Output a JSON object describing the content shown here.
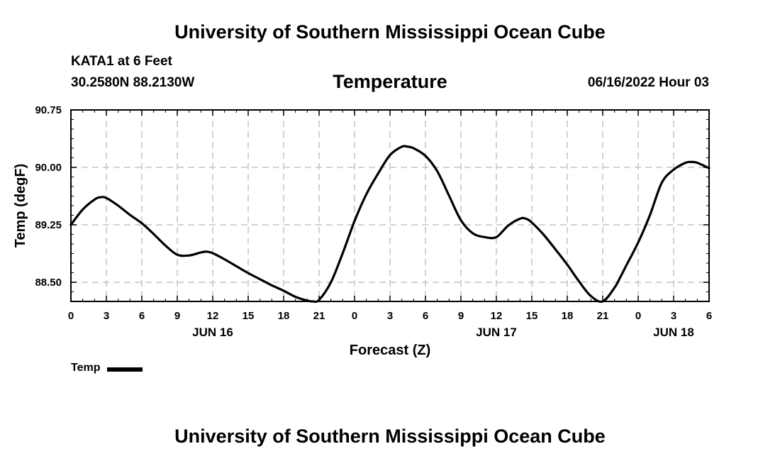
{
  "header": {
    "banner": "University of Southern Mississippi Ocean Cube",
    "station": "KATA1 at 6 Feet",
    "coords": "30.2580N  88.2130W",
    "title": "Temperature",
    "timestamp": "06/16/2022 Hour 03"
  },
  "footer": {
    "banner": "University of Southern Mississippi Ocean Cube"
  },
  "legend": {
    "label": "Temp",
    "color": "#000000"
  },
  "chart_data": {
    "type": "line",
    "title": "Temperature",
    "xlabel": "Forecast (Z)",
    "ylabel": "Temp (degF)",
    "x_unit": "hours since JUN 16 00Z",
    "xlim": [
      0,
      54
    ],
    "ylim": [
      88.25,
      90.75
    ],
    "y_grid_values": [
      88.5,
      89.25,
      90.0,
      90.75
    ],
    "y_tick_labels": [
      "88.50",
      "89.25",
      "90.00",
      "90.75"
    ],
    "x_ticks": [
      0,
      3,
      6,
      9,
      12,
      15,
      18,
      21,
      24,
      27,
      30,
      33,
      36,
      39,
      42,
      45,
      48,
      51,
      54
    ],
    "x_tick_labels": [
      "0",
      "3",
      "6",
      "9",
      "12",
      "15",
      "18",
      "21",
      "0",
      "3",
      "6",
      "9",
      "12",
      "15",
      "18",
      "21",
      "0",
      "3",
      "6"
    ],
    "x_grid_values": [
      3,
      6,
      9,
      12,
      15,
      18,
      21,
      24,
      27,
      30,
      33,
      36,
      39,
      42,
      45,
      48,
      51
    ],
    "day_labels": [
      {
        "x": 12,
        "label": "JUN 16"
      },
      {
        "x": 36,
        "label": "JUN 17"
      },
      {
        "x": 51,
        "label": "JUN 18"
      }
    ],
    "grid": true,
    "legend_position": "bottom-left",
    "series": [
      {
        "name": "Temp",
        "color": "#000000",
        "x": [
          0,
          1,
          2,
          2.5,
          3,
          4,
          5,
          6,
          7,
          8,
          9,
          10,
          11,
          11.5,
          12,
          13,
          14,
          15,
          16,
          17,
          18,
          19,
          20,
          20.5,
          21,
          22,
          23,
          24,
          25,
          26,
          27,
          28,
          28.5,
          29,
          30,
          31,
          32,
          33,
          34,
          35,
          36,
          37,
          38,
          38.5,
          39,
          40,
          41,
          42,
          43,
          44,
          45,
          46,
          46.5,
          47,
          48,
          49,
          50,
          51,
          52,
          52.5,
          53,
          54
        ],
        "y": [
          89.25,
          89.45,
          89.58,
          89.61,
          89.6,
          89.5,
          89.38,
          89.27,
          89.13,
          88.98,
          88.86,
          88.85,
          88.89,
          88.9,
          88.88,
          88.8,
          88.71,
          88.62,
          88.54,
          88.46,
          88.39,
          88.31,
          88.26,
          88.25,
          88.27,
          88.5,
          88.88,
          89.3,
          89.65,
          89.92,
          90.16,
          90.27,
          90.27,
          90.25,
          90.15,
          89.95,
          89.63,
          89.31,
          89.14,
          89.09,
          89.09,
          89.24,
          89.33,
          89.33,
          89.28,
          89.12,
          88.93,
          88.73,
          88.51,
          88.32,
          88.25,
          88.43,
          88.57,
          88.72,
          89.02,
          89.38,
          89.8,
          89.97,
          90.06,
          90.07,
          90.06,
          89.99
        ]
      }
    ]
  }
}
